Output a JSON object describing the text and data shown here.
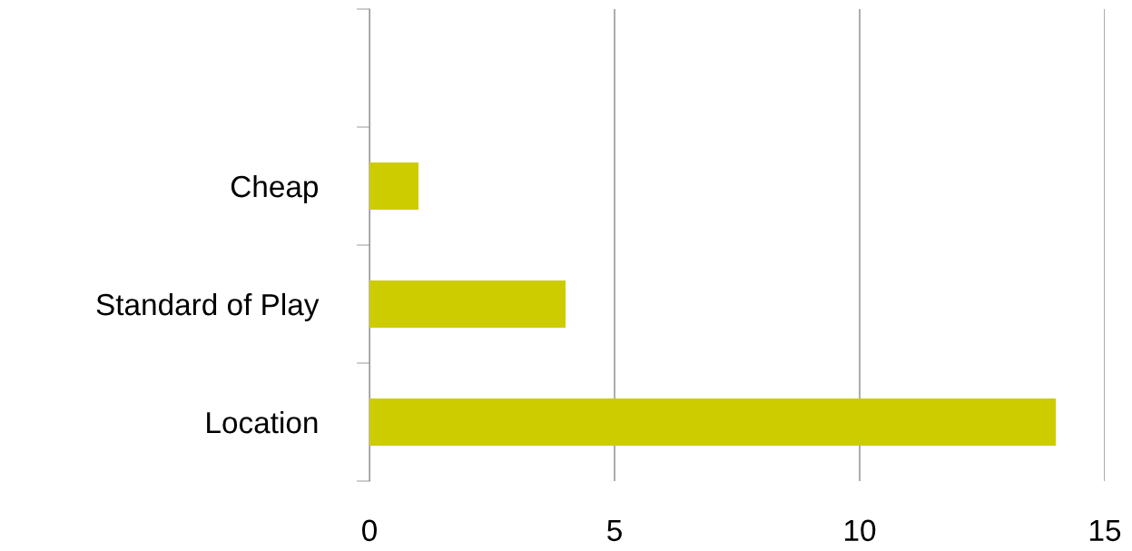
{
  "chart_data": {
    "type": "bar",
    "orientation": "horizontal",
    "categories": [
      null,
      "Cheap",
      "Standard of Play",
      "Location"
    ],
    "values": [
      null,
      1,
      4,
      14
    ],
    "color": "#cccc00",
    "xlim": [
      0,
      15
    ],
    "xticks": [
      0,
      5,
      10,
      15
    ],
    "grid": "x",
    "legend": false
  }
}
